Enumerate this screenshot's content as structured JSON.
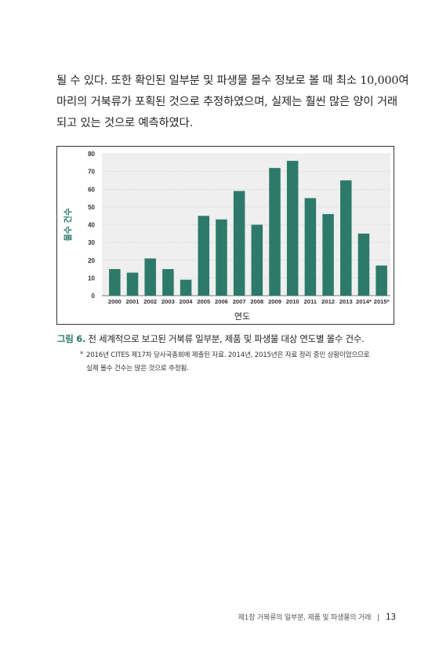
{
  "body_text": {
    "lines": [
      "될 수 있다. 또한 확인된 일부분 및 파생물 몰수 정보로 볼 때 최소 10,000여",
      "마리의 거북류가 포획된 것으로 추정하였으며, 실제는 훨씬 많은 양이 거래",
      "되고 있는 것으로 예측하였다."
    ]
  },
  "chart_data": {
    "type": "bar",
    "categories": [
      "2000",
      "2001",
      "2002",
      "2003",
      "2004",
      "2005",
      "2006",
      "2007",
      "2008",
      "2009",
      "2010",
      "2011",
      "2012",
      "2013",
      "2014*",
      "2015*"
    ],
    "values": [
      15,
      13,
      21,
      15,
      9,
      45,
      43,
      59,
      40,
      72,
      76,
      55,
      46,
      65,
      35,
      17
    ],
    "ylim": [
      0,
      80
    ],
    "yticks": [
      0,
      10,
      20,
      30,
      40,
      50,
      60,
      70,
      80
    ],
    "xlabel": "연도",
    "ylabel": "몰수 건수",
    "grid": true,
    "bar_color": "#2d7a6a",
    "plot_bg": "#efefef"
  },
  "caption": {
    "label": "그림 6.",
    "text": " 전 세계적으로 보고된 거북류 일부분, 제품 및 파생물 대상 연도별 몰수 건수."
  },
  "note": {
    "mark": "*",
    "lines": [
      "2016년 CITES 제17차 당사국총회에 제출된 자료. 2014년, 2015년은 자료 정리 중인 상황이었으므로",
      "실제 몰수 건수는 많은 것으로 추정됨."
    ]
  },
  "footer": {
    "chapter": "제1장 거북류의 일부분, 제품 및 파생물의 거래",
    "separator": "|",
    "page": "13"
  },
  "colors": {
    "accent": "#2d7a6a"
  }
}
